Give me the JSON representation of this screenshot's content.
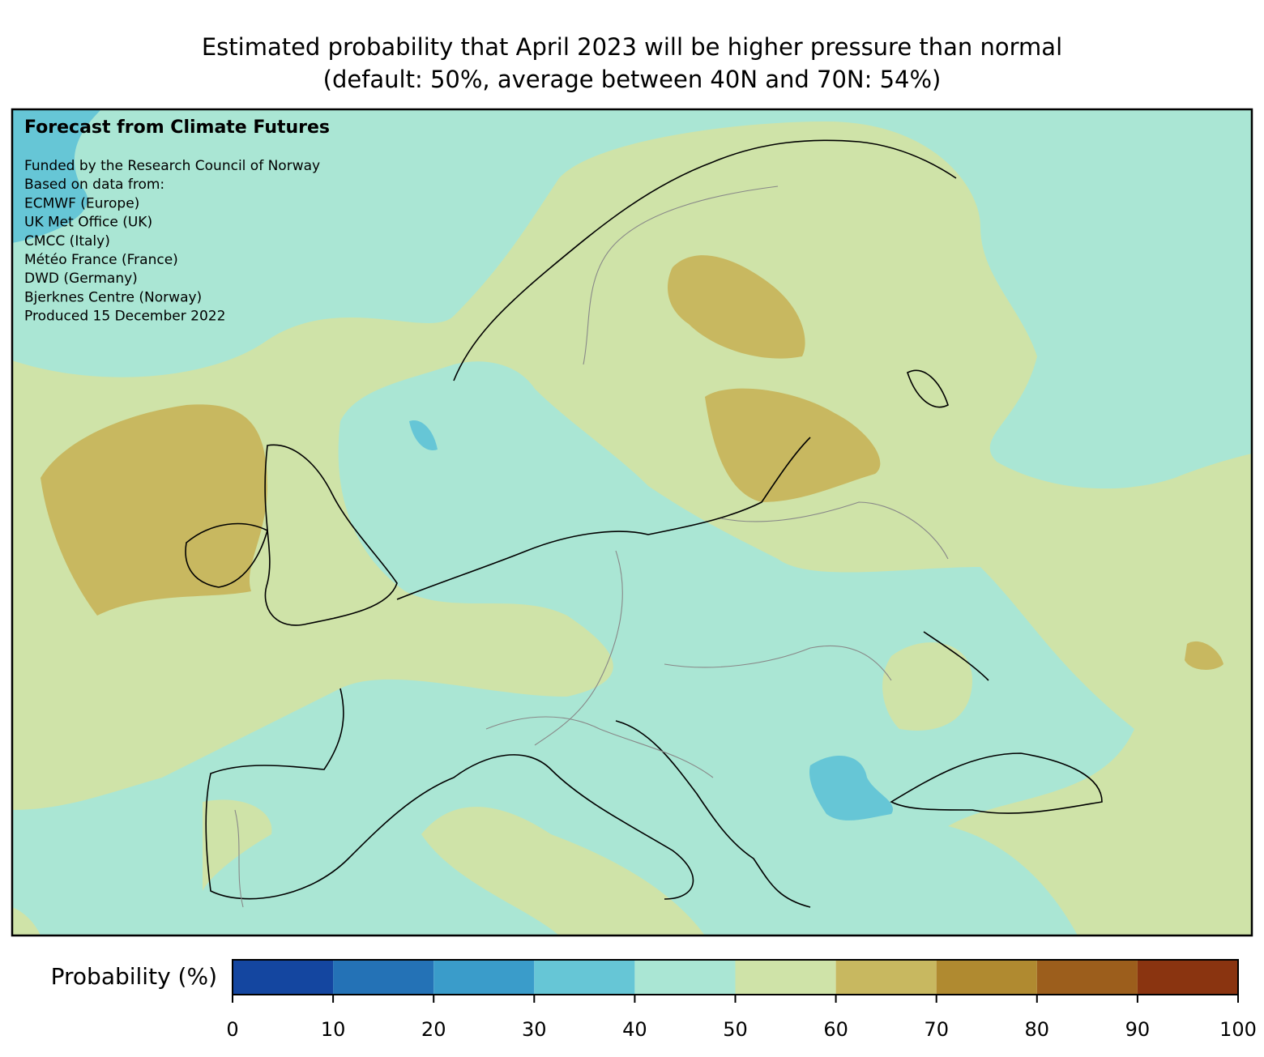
{
  "title": [
    "Estimated probability that April 2023 will be higher pressure than normal",
    "(default: 50%, average between 40N and 70N: 54%)"
  ],
  "annotation": {
    "heading": "Forecast from Climate Futures",
    "lines": [
      "Funded by the Research Council of Norway",
      "Based on data from:",
      "ECMWF (Europe)",
      "UK Met Office (UK)",
      "CMCC (Italy)",
      "Météo France (France)",
      "DWD (Germany)",
      "Bjerknes Centre (Norway)",
      "Produced 15 December 2022"
    ]
  },
  "colorbar": {
    "label": "Probability (%)",
    "bins": [
      0,
      10,
      20,
      30,
      40,
      50,
      60,
      70,
      80,
      90,
      100
    ],
    "colors": [
      "#1446a0",
      "#2472b6",
      "#3a9cca",
      "#66c6d6",
      "#aae6d4",
      "#cfe3a8",
      "#c8b860",
      "#b08a30",
      "#9c5e1c",
      "#8a3410"
    ],
    "ticks": [
      0,
      10,
      20,
      30,
      40,
      50,
      60,
      70,
      80,
      90,
      100
    ]
  }
}
